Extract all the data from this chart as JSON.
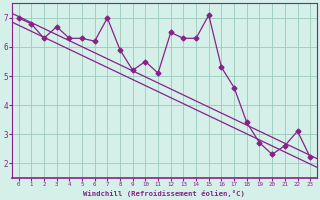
{
  "xlabel": "Windchill (Refroidissement éolien,°C)",
  "bg_color": "#d4f0e8",
  "line_color": "#882288",
  "grid_color": "#99ccbb",
  "x_data": [
    0,
    1,
    2,
    3,
    4,
    5,
    6,
    7,
    8,
    9,
    10,
    11,
    12,
    13,
    14,
    15,
    16,
    17,
    18,
    19,
    20,
    21,
    22,
    23
  ],
  "y_data": [
    7.0,
    6.8,
    6.3,
    6.7,
    6.3,
    6.3,
    6.2,
    7.0,
    5.9,
    5.2,
    5.5,
    5.1,
    6.5,
    6.3,
    6.3,
    7.1,
    5.3,
    4.6,
    3.4,
    2.7,
    2.3,
    2.6,
    3.1,
    2.2
  ],
  "reg_slope": -0.208,
  "reg_intercept1": 7.05,
  "reg_intercept2": 6.75,
  "xlim": [
    -0.5,
    23.5
  ],
  "ylim": [
    1.5,
    7.5
  ],
  "yticks": [
    2,
    3,
    4,
    5,
    6,
    7
  ],
  "xticks": [
    0,
    1,
    2,
    3,
    4,
    5,
    6,
    7,
    8,
    9,
    10,
    11,
    12,
    13,
    14,
    15,
    16,
    17,
    18,
    19,
    20,
    21,
    22,
    23
  ]
}
